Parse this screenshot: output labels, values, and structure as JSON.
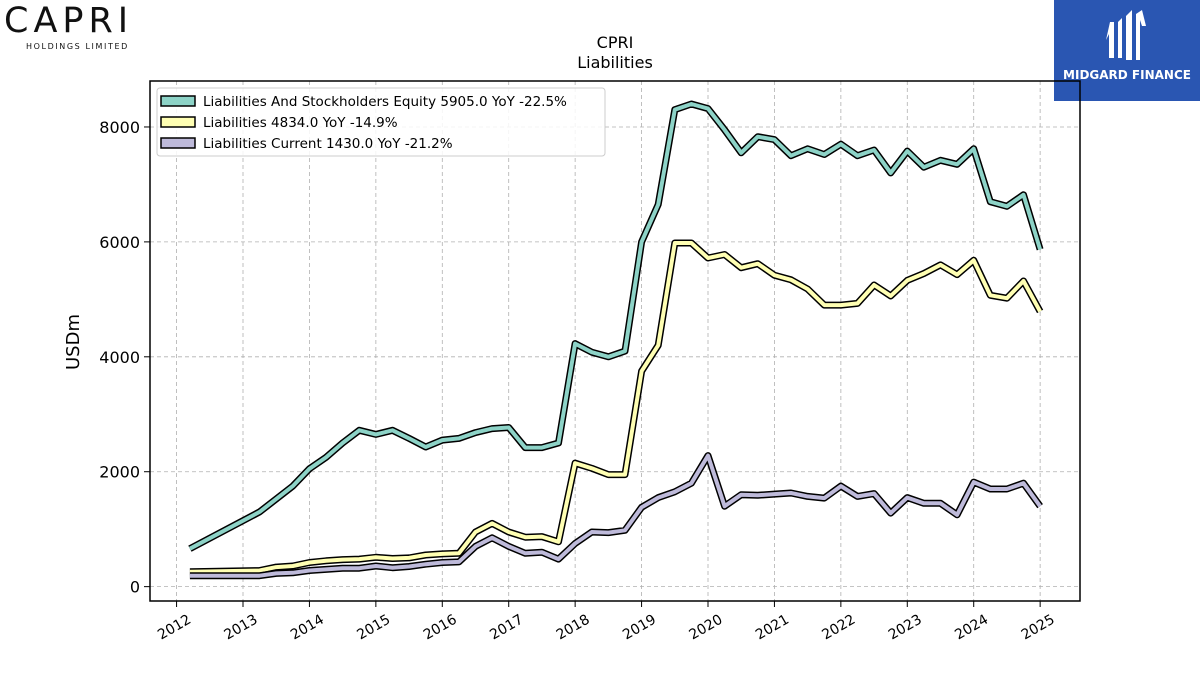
{
  "logos": {
    "company": "CAPRI",
    "company_sub": "HOLDINGS LIMITED",
    "publisher": "MIDGARD FINANCE"
  },
  "chart_data": {
    "type": "line",
    "title": "CPRI",
    "subtitle": "Liabilities",
    "ylabel": "USDm",
    "xlabel": "",
    "ylim": [
      -250,
      8800
    ],
    "yticks": [
      0,
      2000,
      4000,
      6000,
      8000
    ],
    "xlim": [
      2011.6,
      2025.6
    ],
    "xticks": [
      "2012",
      "2013",
      "2014",
      "2015",
      "2016",
      "2017",
      "2018",
      "2019",
      "2020",
      "2021",
      "2022",
      "2023",
      "2024",
      "2025"
    ],
    "grid": true,
    "legend_position": "top-left",
    "series": [
      {
        "name": "Liabilities And Stockholders Equity  5905.0 YoY -22.5%",
        "color": "#8dd3c7",
        "points": [
          [
            2012.2,
            660
          ],
          [
            2013.25,
            1300
          ],
          [
            2013.75,
            1750
          ],
          [
            2014.0,
            2050
          ],
          [
            2014.25,
            2250
          ],
          [
            2014.5,
            2500
          ],
          [
            2014.75,
            2720
          ],
          [
            2015.0,
            2650
          ],
          [
            2015.25,
            2720
          ],
          [
            2015.5,
            2580
          ],
          [
            2015.75,
            2430
          ],
          [
            2016.0,
            2550
          ],
          [
            2016.25,
            2580
          ],
          [
            2016.5,
            2680
          ],
          [
            2016.75,
            2750
          ],
          [
            2017.0,
            2770
          ],
          [
            2017.25,
            2420
          ],
          [
            2017.5,
            2420
          ],
          [
            2017.75,
            2500
          ],
          [
            2018.0,
            4230
          ],
          [
            2018.25,
            4080
          ],
          [
            2018.5,
            4000
          ],
          [
            2018.75,
            4100
          ],
          [
            2019.0,
            6000
          ],
          [
            2019.25,
            6650
          ],
          [
            2019.5,
            8300
          ],
          [
            2019.75,
            8400
          ],
          [
            2020.0,
            8320
          ],
          [
            2020.25,
            7950
          ],
          [
            2020.5,
            7550
          ],
          [
            2020.75,
            7830
          ],
          [
            2021.0,
            7780
          ],
          [
            2021.25,
            7500
          ],
          [
            2021.5,
            7620
          ],
          [
            2021.75,
            7520
          ],
          [
            2022.0,
            7700
          ],
          [
            2022.25,
            7500
          ],
          [
            2022.5,
            7600
          ],
          [
            2022.75,
            7200
          ],
          [
            2023.0,
            7580
          ],
          [
            2023.25,
            7300
          ],
          [
            2023.5,
            7420
          ],
          [
            2023.75,
            7350
          ],
          [
            2024.0,
            7620
          ],
          [
            2024.25,
            6700
          ],
          [
            2024.5,
            6620
          ],
          [
            2024.75,
            6820
          ],
          [
            2025.0,
            5870
          ]
        ]
      },
      {
        "name": "Liabilities  4834.0 YoY -14.9%",
        "color": "#ffffb3",
        "points": [
          [
            2012.2,
            260
          ],
          [
            2013.25,
            280
          ],
          [
            2013.5,
            340
          ],
          [
            2013.75,
            360
          ],
          [
            2014.0,
            420
          ],
          [
            2014.25,
            450
          ],
          [
            2014.5,
            470
          ],
          [
            2014.75,
            480
          ],
          [
            2015.0,
            510
          ],
          [
            2015.25,
            490
          ],
          [
            2015.5,
            500
          ],
          [
            2015.75,
            550
          ],
          [
            2016.0,
            570
          ],
          [
            2016.25,
            580
          ],
          [
            2016.5,
            950
          ],
          [
            2016.75,
            1100
          ],
          [
            2017.0,
            950
          ],
          [
            2017.25,
            860
          ],
          [
            2017.5,
            870
          ],
          [
            2017.75,
            780
          ],
          [
            2018.0,
            2150
          ],
          [
            2018.25,
            2060
          ],
          [
            2018.5,
            1950
          ],
          [
            2018.75,
            1950
          ],
          [
            2019.0,
            3750
          ],
          [
            2019.25,
            4200
          ],
          [
            2019.5,
            5980
          ],
          [
            2019.75,
            5980
          ],
          [
            2020.0,
            5720
          ],
          [
            2020.25,
            5780
          ],
          [
            2020.5,
            5550
          ],
          [
            2020.75,
            5620
          ],
          [
            2021.0,
            5420
          ],
          [
            2021.25,
            5340
          ],
          [
            2021.5,
            5180
          ],
          [
            2021.75,
            4900
          ],
          [
            2022.0,
            4900
          ],
          [
            2022.25,
            4930
          ],
          [
            2022.5,
            5250
          ],
          [
            2022.75,
            5060
          ],
          [
            2023.0,
            5330
          ],
          [
            2023.25,
            5450
          ],
          [
            2023.5,
            5600
          ],
          [
            2023.75,
            5430
          ],
          [
            2024.0,
            5680
          ],
          [
            2024.25,
            5070
          ],
          [
            2024.5,
            5020
          ],
          [
            2024.75,
            5320
          ],
          [
            2025.0,
            4790
          ]
        ]
      },
      {
        "name": "Liabilities Current  1430.0 YoY -21.2%",
        "color": "#bebada",
        "points": [
          [
            2012.2,
            190
          ],
          [
            2013.25,
            190
          ],
          [
            2013.5,
            230
          ],
          [
            2013.75,
            240
          ],
          [
            2014.0,
            280
          ],
          [
            2014.25,
            300
          ],
          [
            2014.5,
            320
          ],
          [
            2014.75,
            320
          ],
          [
            2015.0,
            360
          ],
          [
            2015.25,
            330
          ],
          [
            2015.5,
            350
          ],
          [
            2015.75,
            390
          ],
          [
            2016.0,
            420
          ],
          [
            2016.25,
            430
          ],
          [
            2016.5,
            700
          ],
          [
            2016.75,
            850
          ],
          [
            2017.0,
            700
          ],
          [
            2017.25,
            580
          ],
          [
            2017.5,
            600
          ],
          [
            2017.75,
            480
          ],
          [
            2018.0,
            750
          ],
          [
            2018.25,
            950
          ],
          [
            2018.5,
            940
          ],
          [
            2018.75,
            980
          ],
          [
            2019.0,
            1380
          ],
          [
            2019.25,
            1550
          ],
          [
            2019.5,
            1650
          ],
          [
            2019.75,
            1800
          ],
          [
            2020.0,
            2280
          ],
          [
            2020.25,
            1400
          ],
          [
            2020.5,
            1600
          ],
          [
            2020.75,
            1590
          ],
          [
            2021.0,
            1610
          ],
          [
            2021.25,
            1630
          ],
          [
            2021.5,
            1570
          ],
          [
            2021.75,
            1540
          ],
          [
            2022.0,
            1750
          ],
          [
            2022.25,
            1570
          ],
          [
            2022.5,
            1620
          ],
          [
            2022.75,
            1280
          ],
          [
            2023.0,
            1550
          ],
          [
            2023.25,
            1450
          ],
          [
            2023.5,
            1450
          ],
          [
            2023.75,
            1250
          ],
          [
            2024.0,
            1820
          ],
          [
            2024.25,
            1700
          ],
          [
            2024.5,
            1700
          ],
          [
            2024.75,
            1800
          ],
          [
            2025.0,
            1400
          ]
        ]
      }
    ]
  }
}
